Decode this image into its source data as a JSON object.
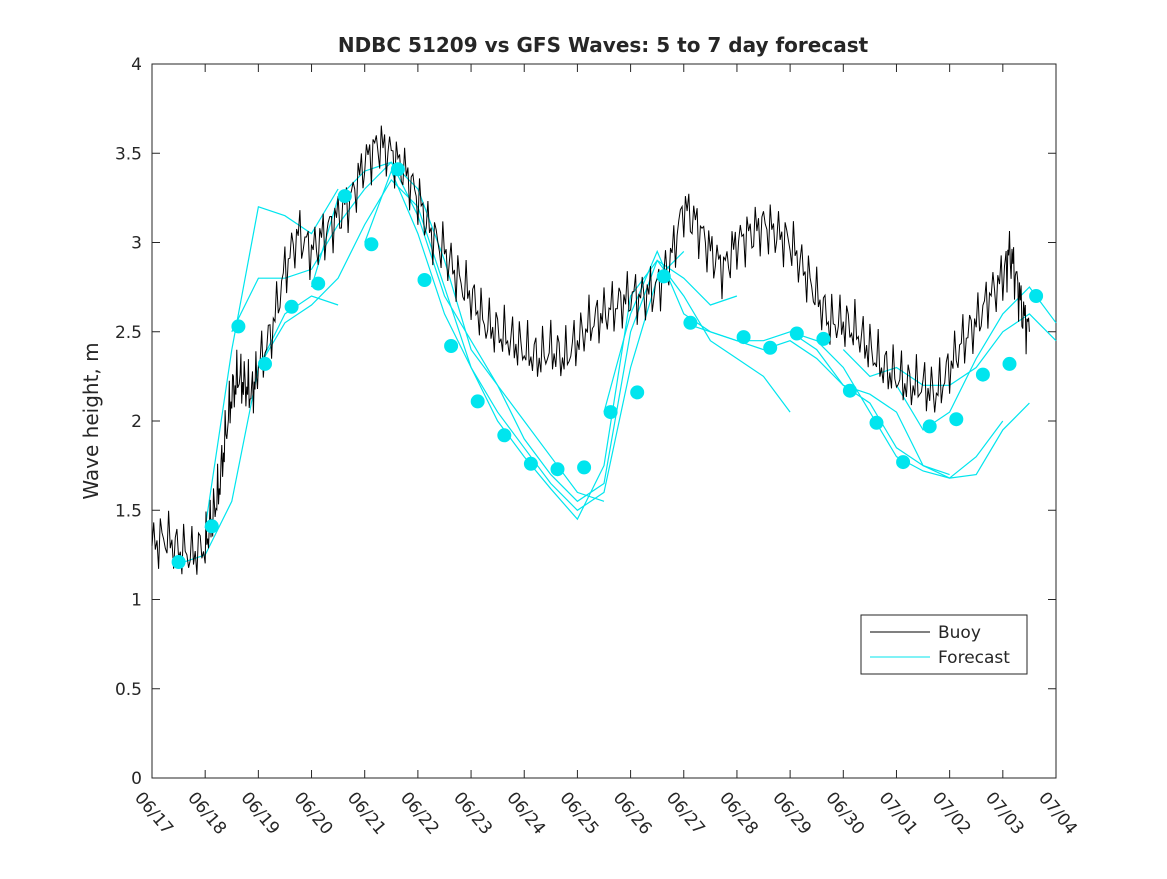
{
  "chart_data": {
    "type": "line",
    "title": "NDBC 51209 vs GFS Waves: 5 to 7 day forecast",
    "xlabel": "",
    "ylabel": "Wave height, m",
    "x_unit": "date (June 17 – July 4)",
    "xlim": [
      "06/17",
      "07/04"
    ],
    "ylim": [
      0,
      4
    ],
    "yticks": [
      "0",
      "0.5",
      "1",
      "1.5",
      "2",
      "2.5",
      "3",
      "3.5",
      "4"
    ],
    "xticks": [
      "06/17",
      "06/18",
      "06/19",
      "06/20",
      "06/21",
      "06/22",
      "06/23",
      "06/24",
      "06/25",
      "06/26",
      "06/27",
      "06/28",
      "06/29",
      "06/30",
      "07/01",
      "07/02",
      "07/03",
      "07/04"
    ],
    "grid": false,
    "legend_position": "bottom-right",
    "colors": {
      "buoy": "#000000",
      "forecast": "#00e5ee",
      "axis": "#262626"
    },
    "series": [
      {
        "name": "Buoy",
        "style": "thin black line, noisy",
        "points": [
          [
            "06/17 00:00",
            1.3
          ],
          [
            "06/17 06:00",
            1.35
          ],
          [
            "06/17 12:00",
            1.28
          ],
          [
            "06/17 18:00",
            1.25
          ],
          [
            "06/18 00:00",
            1.3
          ],
          [
            "06/18 03:00",
            1.45
          ],
          [
            "06/18 06:00",
            1.6
          ],
          [
            "06/18 09:00",
            1.9
          ],
          [
            "06/18 12:00",
            2.15
          ],
          [
            "06/18 15:00",
            2.25
          ],
          [
            "06/18 18:00",
            2.2
          ],
          [
            "06/18 21:00",
            2.15
          ],
          [
            "06/19 00:00",
            2.3
          ],
          [
            "06/19 06:00",
            2.5
          ],
          [
            "06/19 12:00",
            2.85
          ],
          [
            "06/19 18:00",
            3.05
          ],
          [
            "06/20 00:00",
            2.95
          ],
          [
            "06/20 06:00",
            3.05
          ],
          [
            "06/20 12:00",
            3.15
          ],
          [
            "06/20 18:00",
            3.25
          ],
          [
            "06/21 00:00",
            3.45
          ],
          [
            "06/21 06:00",
            3.55
          ],
          [
            "06/21 12:00",
            3.5
          ],
          [
            "06/21 18:00",
            3.4
          ],
          [
            "06/22 00:00",
            3.25
          ],
          [
            "06/22 06:00",
            3.05
          ],
          [
            "06/22 12:00",
            2.95
          ],
          [
            "06/22 18:00",
            2.8
          ],
          [
            "06/23 00:00",
            2.7
          ],
          [
            "06/23 06:00",
            2.55
          ],
          [
            "06/23 12:00",
            2.5
          ],
          [
            "06/23 18:00",
            2.45
          ],
          [
            "06/24 00:00",
            2.4
          ],
          [
            "06/24 06:00",
            2.35
          ],
          [
            "06/24 12:00",
            2.4
          ],
          [
            "06/24 18:00",
            2.35
          ],
          [
            "06/25 00:00",
            2.45
          ],
          [
            "06/25 06:00",
            2.55
          ],
          [
            "06/25 12:00",
            2.6
          ],
          [
            "06/25 18:00",
            2.65
          ],
          [
            "06/26 00:00",
            2.7
          ],
          [
            "06/26 06:00",
            2.7
          ],
          [
            "06/26 12:00",
            2.75
          ],
          [
            "06/26 18:00",
            2.9
          ],
          [
            "06/27 00:00",
            3.2
          ],
          [
            "06/27 06:00",
            3.1
          ],
          [
            "06/27 12:00",
            2.95
          ],
          [
            "06/27 18:00",
            2.85
          ],
          [
            "06/28 00:00",
            3.0
          ],
          [
            "06/28 06:00",
            3.05
          ],
          [
            "06/28 12:00",
            3.1
          ],
          [
            "06/28 18:00",
            3.05
          ],
          [
            "06/29 00:00",
            3.0
          ],
          [
            "06/29 06:00",
            2.85
          ],
          [
            "06/29 12:00",
            2.7
          ],
          [
            "06/29 18:00",
            2.55
          ],
          [
            "06/30 00:00",
            2.55
          ],
          [
            "06/30 06:00",
            2.5
          ],
          [
            "06/30 12:00",
            2.4
          ],
          [
            "06/30 18:00",
            2.3
          ],
          [
            "07/01 00:00",
            2.25
          ],
          [
            "07/01 06:00",
            2.2
          ],
          [
            "07/01 12:00",
            2.2
          ],
          [
            "07/01 18:00",
            2.15
          ],
          [
            "07/02 00:00",
            2.3
          ],
          [
            "07/02 06:00",
            2.45
          ],
          [
            "07/02 12:00",
            2.55
          ],
          [
            "07/02 18:00",
            2.7
          ],
          [
            "07/03 00:00",
            2.8
          ],
          [
            "07/03 03:00",
            2.95
          ],
          [
            "07/03 06:00",
            2.8
          ],
          [
            "07/03 09:00",
            2.6
          ],
          [
            "07/03 12:00",
            2.5
          ]
        ]
      },
      {
        "name": "Forecast",
        "style": "thin cyan lines (one per forecast run) with filled cyan markers at run points",
        "runs": [
          [
            [
              "06/17 12:00",
              1.2
            ],
            [
              "06/18 00:00",
              1.25
            ],
            [
              "06/18 12:00",
              1.55
            ],
            [
              "06/19 00:00",
              2.3
            ],
            [
              "06/19 12:00",
              2.6
            ],
            [
              "06/20 00:00",
              2.7
            ],
            [
              "06/20 12:00",
              2.65
            ]
          ],
          [
            [
              "06/18 00:00",
              1.4
            ],
            [
              "06/18 12:00",
              2.4
            ],
            [
              "06/19 00:00",
              3.2
            ],
            [
              "06/19 12:00",
              3.15
            ],
            [
              "06/20 00:00",
              3.05
            ],
            [
              "06/20 12:00",
              3.3
            ]
          ],
          [
            [
              "06/18 12:00",
              2.5
            ],
            [
              "06/19 00:00",
              2.8
            ],
            [
              "06/19 12:00",
              2.8
            ],
            [
              "06/20 00:00",
              2.85
            ],
            [
              "06/20 12:00",
              3.1
            ],
            [
              "06/21 00:00",
              3.3
            ],
            [
              "06/21 12:00",
              3.45
            ],
            [
              "06/22 00:00",
              3.3
            ],
            [
              "06/22 12:00",
              2.9
            ],
            [
              "06/23 00:00",
              2.4
            ],
            [
              "06/23 12:00",
              2.2
            ],
            [
              "06/24 00:00",
              2.0
            ],
            [
              "06/24 12:00",
              1.8
            ],
            [
              "06/25 00:00",
              1.6
            ],
            [
              "06/25 12:00",
              1.55
            ]
          ],
          [
            [
              "06/19 00:00",
              2.3
            ],
            [
              "06/19 12:00",
              2.55
            ],
            [
              "06/20 00:00",
              2.65
            ],
            [
              "06/20 12:00",
              2.8
            ],
            [
              "06/21 00:00",
              3.1
            ],
            [
              "06/21 12:00",
              3.35
            ],
            [
              "06/22 00:00",
              3.2
            ],
            [
              "06/22 12:00",
              2.75
            ],
            [
              "06/23 00:00",
              2.3
            ],
            [
              "06/23 12:00",
              2.05
            ],
            [
              "06/24 00:00",
              1.85
            ],
            [
              "06/24 12:00",
              1.65
            ],
            [
              "06/25 00:00",
              1.5
            ],
            [
              "06/25 12:00",
              1.6
            ],
            [
              "06/26 00:00",
              2.3
            ],
            [
              "06/26 12:00",
              2.8
            ],
            [
              "06/27 00:00",
              2.95
            ]
          ],
          [
            [
              "06/20 00:00",
              2.75
            ],
            [
              "06/20 12:00",
              3.25
            ],
            [
              "06/21 00:00",
              3.4
            ],
            [
              "06/21 12:00",
              3.45
            ],
            [
              "06/22 00:00",
              3.15
            ],
            [
              "06/22 12:00",
              2.7
            ],
            [
              "06/23 00:00",
              2.45
            ],
            [
              "06/23 12:00",
              2.2
            ],
            [
              "06/24 00:00",
              1.9
            ],
            [
              "06/24 12:00",
              1.7
            ],
            [
              "06/25 00:00",
              1.55
            ],
            [
              "06/25 12:00",
              1.65
            ],
            [
              "06/26 00:00",
              2.5
            ],
            [
              "06/26 12:00",
              2.9
            ],
            [
              "06/27 00:00",
              2.8
            ],
            [
              "06/27 12:00",
              2.65
            ],
            [
              "06/28 00:00",
              2.7
            ]
          ],
          [
            [
              "06/21 00:00",
              3.0
            ],
            [
              "06/21 12:00",
              3.4
            ],
            [
              "06/22 00:00",
              3.05
            ],
            [
              "06/22 12:00",
              2.6
            ],
            [
              "06/23 00:00",
              2.3
            ],
            [
              "06/23 12:00",
              2.0
            ],
            [
              "06/24 00:00",
              1.8
            ],
            [
              "06/24 12:00",
              1.62
            ],
            [
              "06/25 00:00",
              1.45
            ],
            [
              "06/25 12:00",
              1.75
            ],
            [
              "06/26 00:00",
              2.7
            ],
            [
              "06/26 12:00",
              2.9
            ],
            [
              "06/27 00:00",
              2.7
            ],
            [
              "06/27 12:00",
              2.45
            ],
            [
              "06/28 00:00",
              2.35
            ],
            [
              "06/28 12:00",
              2.25
            ],
            [
              "06/29 00:00",
              2.05
            ]
          ],
          [
            [
              "06/25 12:00",
              2.05
            ],
            [
              "06/26 00:00",
              2.6
            ],
            [
              "06/26 12:00",
              2.95
            ],
            [
              "06/27 00:00",
              2.6
            ],
            [
              "06/27 12:00",
              2.5
            ],
            [
              "06/28 00:00",
              2.45
            ],
            [
              "06/28 12:00",
              2.4
            ],
            [
              "06/29 00:00",
              2.45
            ],
            [
              "06/29 12:00",
              2.35
            ],
            [
              "06/30 00:00",
              2.2
            ],
            [
              "06/30 12:00",
              2.15
            ],
            [
              "07/01 00:00",
              2.05
            ],
            [
              "07/01 12:00",
              1.75
            ],
            [
              "07/02 00:00",
              1.7
            ]
          ],
          [
            [
              "06/27 00:00",
              2.55
            ],
            [
              "06/27 12:00",
              2.5
            ],
            [
              "06/28 00:00",
              2.45
            ],
            [
              "06/28 12:00",
              2.45
            ],
            [
              "06/29 00:00",
              2.5
            ],
            [
              "06/29 12:00",
              2.4
            ],
            [
              "06/30 00:00",
              2.2
            ],
            [
              "06/30 12:00",
              2.1
            ],
            [
              "07/01 00:00",
              1.85
            ],
            [
              "07/01 12:00",
              1.75
            ],
            [
              "07/02 00:00",
              1.68
            ],
            [
              "07/02 12:00",
              1.8
            ],
            [
              "07/03 00:00",
              2.0
            ]
          ],
          [
            [
              "06/29 00:00",
              2.5
            ],
            [
              "06/29 12:00",
              2.45
            ],
            [
              "06/30 00:00",
              2.3
            ],
            [
              "06/30 12:00",
              2.05
            ],
            [
              "07/01 00:00",
              1.8
            ],
            [
              "07/01 12:00",
              1.72
            ],
            [
              "07/02 00:00",
              1.68
            ],
            [
              "07/02 12:00",
              1.7
            ],
            [
              "07/03 00:00",
              1.95
            ],
            [
              "07/03 12:00",
              2.1
            ]
          ],
          [
            [
              "06/30 00:00",
              2.4
            ],
            [
              "06/30 12:00",
              2.25
            ],
            [
              "07/01 00:00",
              2.3
            ],
            [
              "07/01 12:00",
              2.2
            ],
            [
              "07/02 00:00",
              2.2
            ],
            [
              "07/02 12:00",
              2.3
            ],
            [
              "07/03 00:00",
              2.5
            ],
            [
              "07/03 12:00",
              2.6
            ],
            [
              "07/04 00:00",
              2.45
            ]
          ],
          [
            [
              "07/01 00:00",
              2.2
            ],
            [
              "07/01 12:00",
              1.95
            ],
            [
              "07/02 00:00",
              2.05
            ],
            [
              "07/02 12:00",
              2.35
            ],
            [
              "07/03 00:00",
              2.6
            ],
            [
              "07/03 12:00",
              2.75
            ],
            [
              "07/04 00:00",
              2.55
            ]
          ]
        ],
        "markers": [
          [
            "06/17 12:00",
            1.21
          ],
          [
            "06/18 03:00",
            1.41
          ],
          [
            "06/18 15:00",
            2.53
          ],
          [
            "06/19 03:00",
            2.32
          ],
          [
            "06/19 15:00",
            2.64
          ],
          [
            "06/20 03:00",
            2.77
          ],
          [
            "06/20 15:00",
            3.26
          ],
          [
            "06/21 03:00",
            2.99
          ],
          [
            "06/21 15:00",
            3.41
          ],
          [
            "06/22 03:00",
            2.79
          ],
          [
            "06/22 15:00",
            2.42
          ],
          [
            "06/23 03:00",
            2.11
          ],
          [
            "06/23 15:00",
            1.92
          ],
          [
            "06/24 03:00",
            1.76
          ],
          [
            "06/24 15:00",
            1.73
          ],
          [
            "06/25 03:00",
            1.74
          ],
          [
            "06/25 15:00",
            2.05
          ],
          [
            "06/26 03:00",
            2.16
          ],
          [
            "06/26 15:00",
            2.81
          ],
          [
            "06/27 03:00",
            2.55
          ],
          [
            "06/28 03:00",
            2.47
          ],
          [
            "06/28 15:00",
            2.41
          ],
          [
            "06/29 03:00",
            2.49
          ],
          [
            "06/29 15:00",
            2.46
          ],
          [
            "06/30 03:00",
            2.17
          ],
          [
            "06/30 15:00",
            1.99
          ],
          [
            "07/01 03:00",
            1.77
          ],
          [
            "07/01 15:00",
            1.97
          ],
          [
            "07/02 03:00",
            2.01
          ],
          [
            "07/02 15:00",
            2.26
          ],
          [
            "07/03 03:00",
            2.32
          ],
          [
            "07/03 15:00",
            2.7
          ]
        ]
      }
    ],
    "legend": [
      "Buoy",
      "Forecast"
    ]
  }
}
